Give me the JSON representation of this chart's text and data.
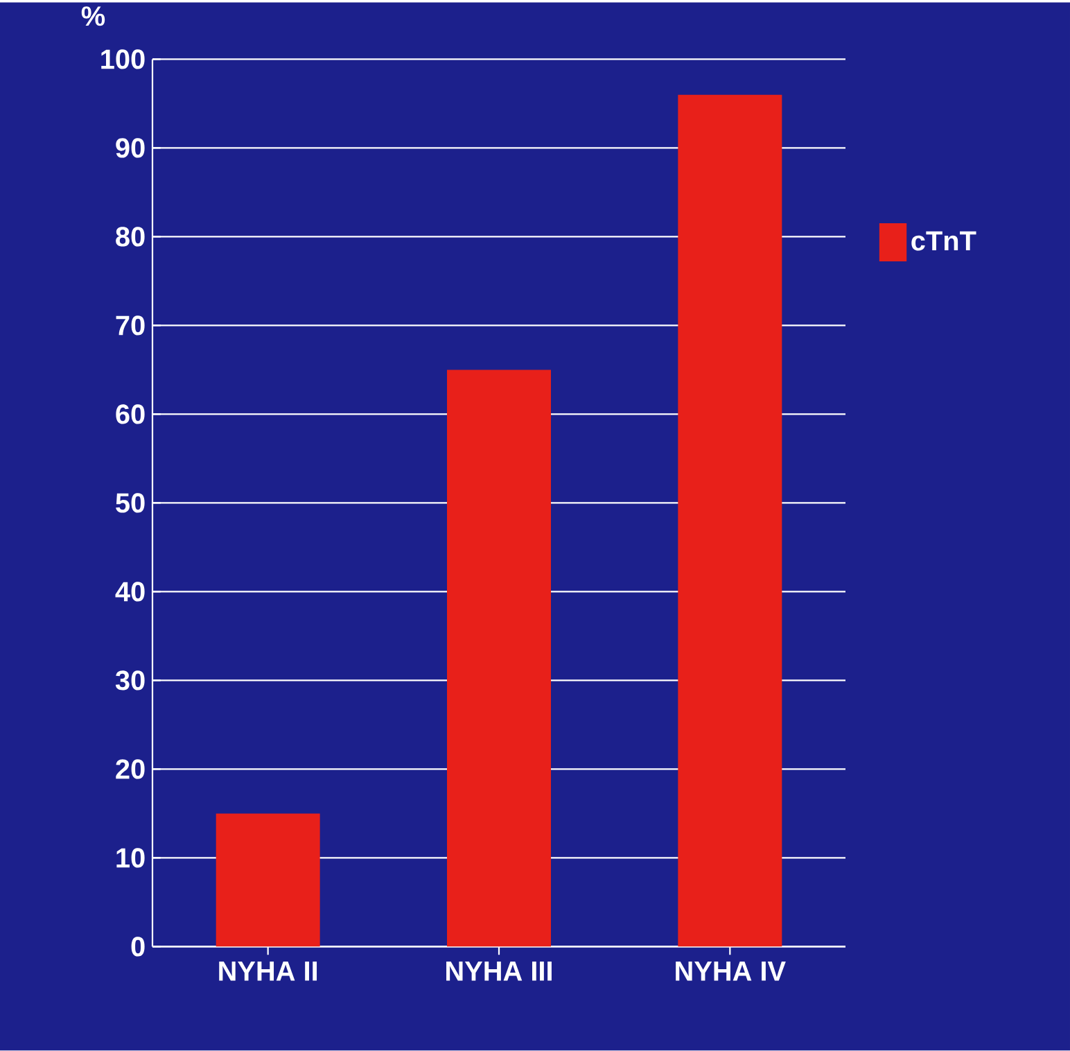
{
  "chart_data": {
    "type": "bar",
    "ylabel": "%",
    "categories": [
      "NYHA II",
      "NYHA III",
      "NYHA IV"
    ],
    "series": [
      {
        "name": "cTnT",
        "color": "#e8201a",
        "values": [
          15,
          65,
          96
        ]
      }
    ],
    "ylim": [
      0,
      100
    ],
    "yticks": [
      0,
      10,
      20,
      30,
      40,
      50,
      60,
      70,
      80,
      90,
      100
    ],
    "grid": "y",
    "legend": "right"
  }
}
